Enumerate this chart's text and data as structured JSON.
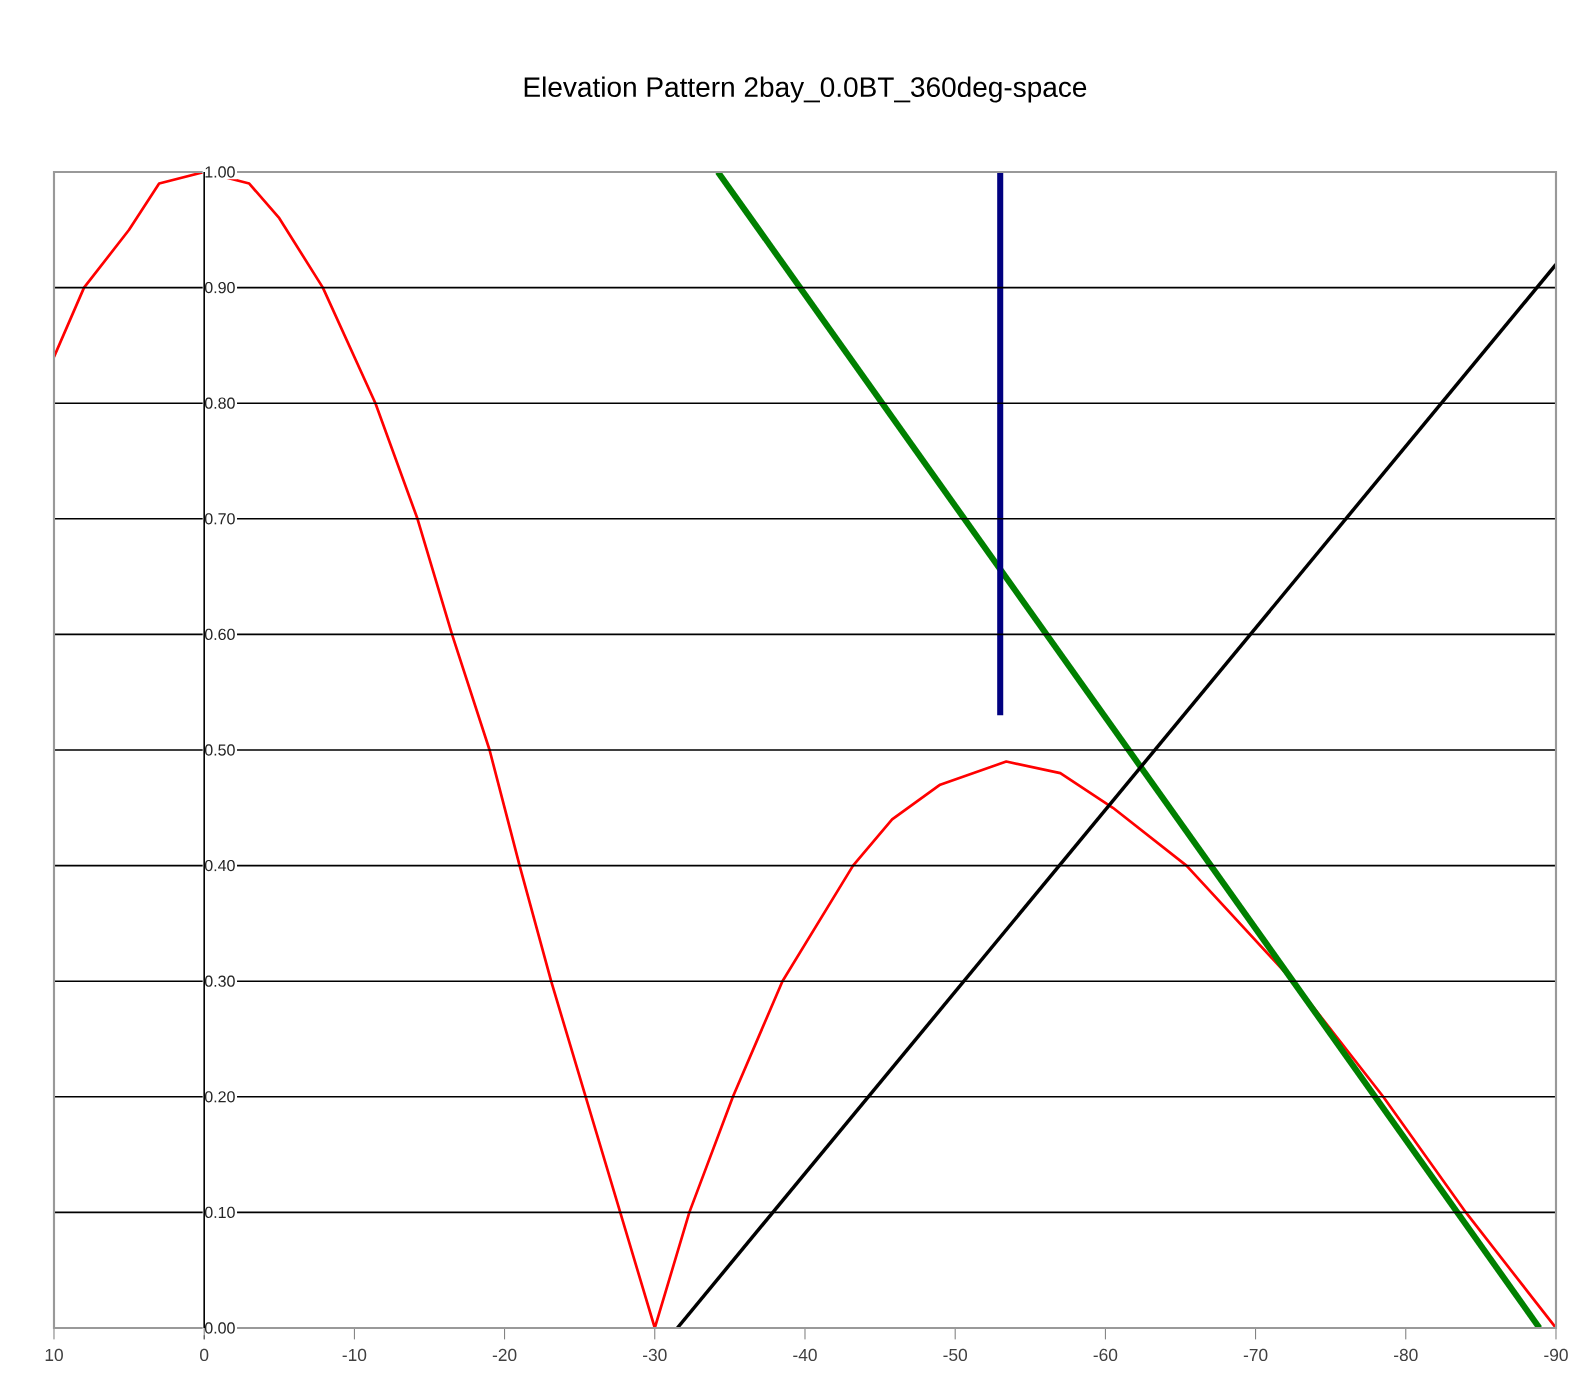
{
  "chart_data": {
    "type": "line",
    "title": "Elevation Pattern 2bay_0.0BT_360deg-space",
    "xlim": [
      10,
      -90
    ],
    "xticks": [
      10,
      0,
      -10,
      -20,
      -30,
      -40,
      -50,
      -60,
      -70,
      -80,
      -90
    ],
    "ylim": [
      0,
      1
    ],
    "yticks": [
      {
        "value": 0,
        "label": "0.00"
      },
      {
        "value": 0.1,
        "label": "0.10"
      },
      {
        "value": 0.2,
        "label": "0.20"
      },
      {
        "value": 0.3,
        "label": "0.30"
      },
      {
        "value": 0.4,
        "label": "0.40"
      },
      {
        "value": 0.5,
        "label": "0.50"
      },
      {
        "value": 0.6,
        "label": "0.60"
      },
      {
        "value": 0.7,
        "label": "0.70"
      },
      {
        "value": 0.8,
        "label": "0.80"
      },
      {
        "value": 0.9,
        "label": "0.90"
      },
      {
        "value": 1,
        "label": "1.00"
      }
    ],
    "grid": "y",
    "series": [
      {
        "color": "#ff0000",
        "x": [
          10,
          8,
          5,
          3,
          0,
          -3,
          -5,
          -7.9,
          -11.4,
          -14.2,
          -16.5,
          -19,
          -21,
          -23.1,
          -25.4,
          -27.7,
          -30,
          -32.3,
          -35.2,
          -38.5,
          -43.2,
          -45.8,
          -49,
          -53.4,
          -57,
          -60.5,
          -65.4,
          -72.5,
          -78.5,
          -84,
          -90
        ],
        "values": [
          0.84,
          0.9,
          0.95,
          0.99,
          1.0,
          0.99,
          0.96,
          0.9,
          0.8,
          0.7,
          0.6,
          0.5,
          0.4,
          0.3,
          0.2,
          0.1,
          0,
          0.1,
          0.2,
          0.3,
          0.4,
          0.44,
          0.47,
          0.49,
          0.48,
          0.45,
          0.4,
          0.3,
          0.2,
          0.1,
          0
        ]
      },
      {
        "color": "#008000",
        "x": [
          -34.2,
          -88.9
        ],
        "values": [
          1.0,
          0
        ]
      },
      {
        "color": "#000080",
        "x": [
          -53,
          -53
        ],
        "values": [
          0.53,
          1.0
        ]
      },
      {
        "color": "#000000",
        "x": [
          -31.5,
          -90
        ],
        "values": [
          0,
          0.92
        ]
      }
    ]
  }
}
